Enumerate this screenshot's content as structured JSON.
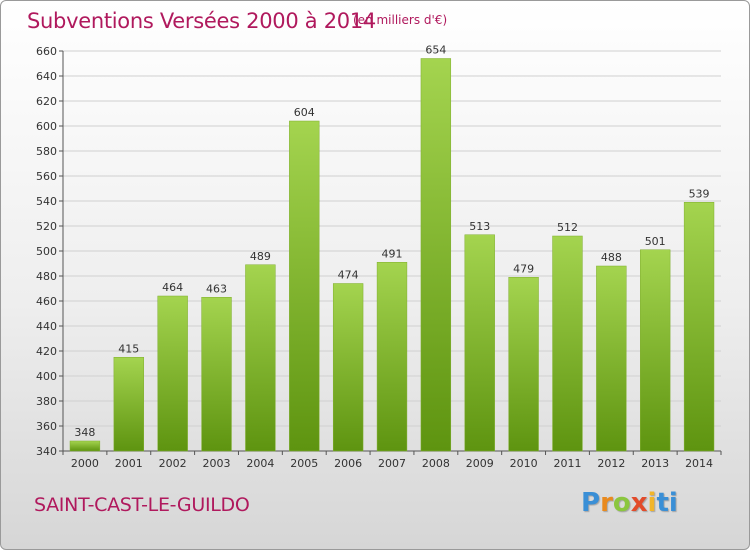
{
  "header": {
    "title": "Subventions Versées 2000 à 2014",
    "subtitle": "(en milliers d'€)"
  },
  "footer": {
    "commune": "SAINT-CAST-LE-GUILDO",
    "logo_letters": [
      "P",
      "r",
      "o",
      "x",
      "i",
      "t",
      "i"
    ]
  },
  "colors": {
    "title": "#b0195d",
    "bar_top": "#a4d44f",
    "bar_bottom": "#5e9410",
    "grid": "#d0d0d0"
  },
  "chart_data": {
    "type": "bar",
    "title": "Subventions Versées 2000 à 2014",
    "categories": [
      "2000",
      "2001",
      "2002",
      "2003",
      "2004",
      "2005",
      "2006",
      "2007",
      "2008",
      "2009",
      "2010",
      "2011",
      "2012",
      "2013",
      "2014"
    ],
    "values": [
      348,
      415,
      464,
      463,
      489,
      604,
      474,
      491,
      654,
      513,
      479,
      512,
      488,
      501,
      539
    ],
    "ylim": [
      340,
      660
    ],
    "yticks": [
      340,
      360,
      380,
      400,
      420,
      440,
      460,
      480,
      500,
      520,
      540,
      560,
      580,
      600,
      620,
      640,
      660
    ],
    "grid": true,
    "data_labels": true
  }
}
